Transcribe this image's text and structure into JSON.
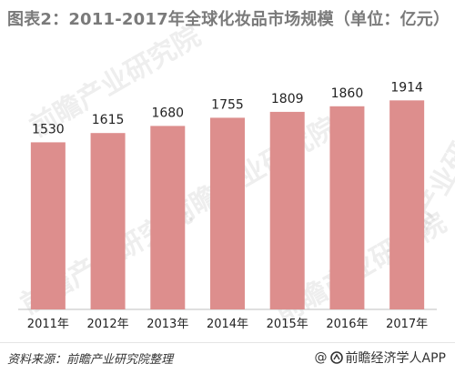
{
  "title": "图表2：2011-2017年全球化妆品市场规模（单位：亿元）",
  "footer": {
    "source": "资料来源：前瞻产业研究院整理",
    "credit_symbol": "@",
    "credit": "前瞻经济学人APP"
  },
  "watermark": {
    "text": "前瞻产业研究院"
  },
  "colors": {
    "bar": "#dd8e8d",
    "axis": "#bfbfbf",
    "title": "#7a7a7a",
    "text": "#222222"
  },
  "chart_data": {
    "type": "bar",
    "categories": [
      "2011年",
      "2012年",
      "2013年",
      "2014年",
      "2015年",
      "2016年",
      "2017年"
    ],
    "values": [
      1530,
      1615,
      1680,
      1755,
      1809,
      1860,
      1914
    ],
    "title": "图表2：2011-2017年全球化妆品市场规模（单位：亿元）",
    "xlabel": "",
    "ylabel": "",
    "ylim": [
      0,
      2000
    ],
    "grid": false,
    "legend": "none",
    "data_labels": true
  }
}
